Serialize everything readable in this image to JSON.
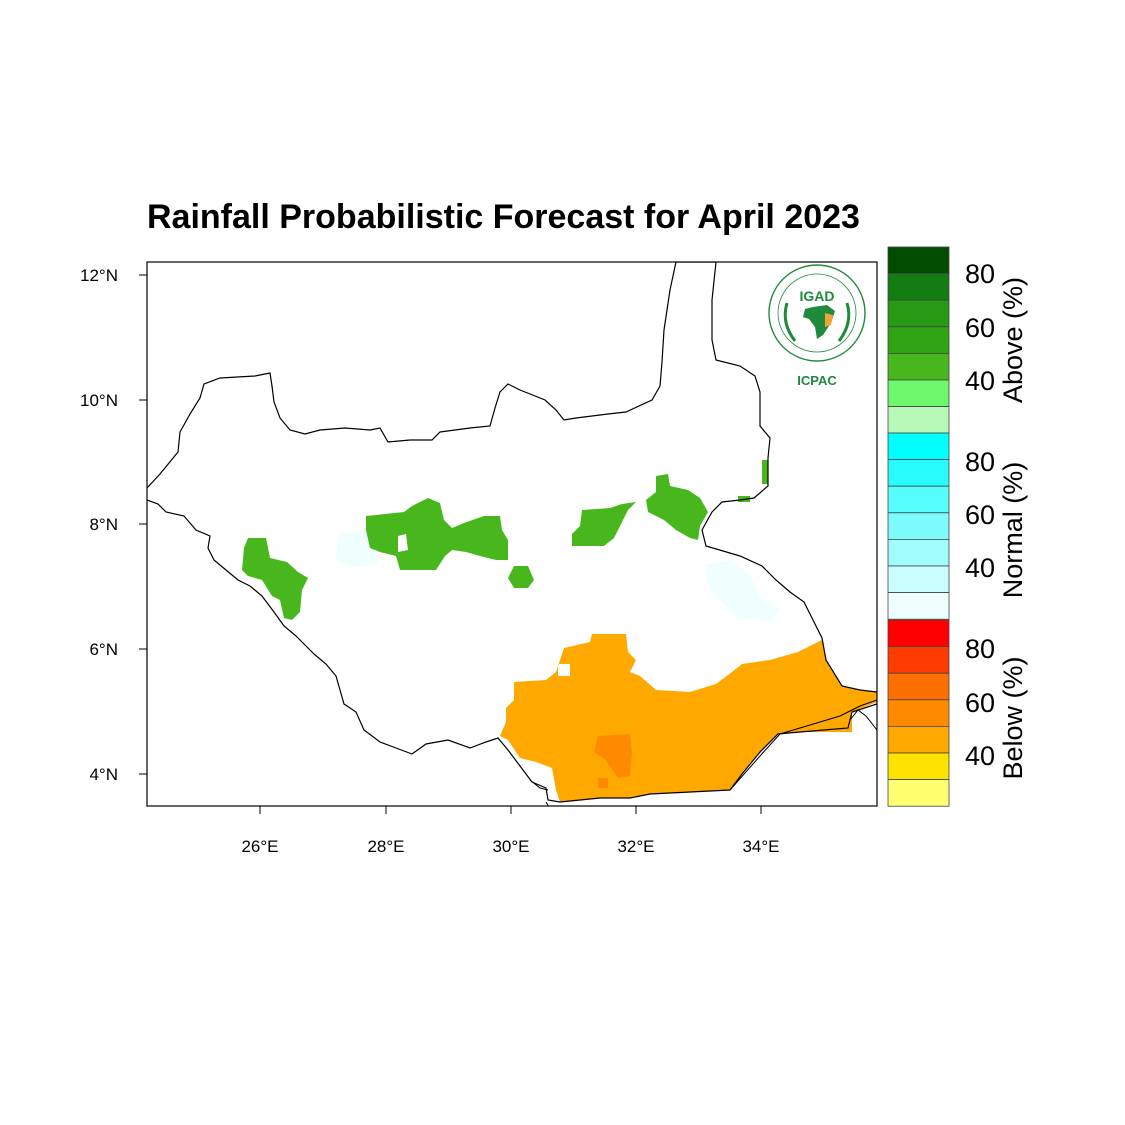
{
  "title": "Rainfall Probabilistic Forecast for April 2023",
  "logo": {
    "top_text": "IGAD",
    "bottom_text": "ICPAC",
    "color": "#1f8a3c",
    "accent": "#f2a33a"
  },
  "axes": {
    "x_ticks": [
      "26°E",
      "28°E",
      "30°E",
      "32°E",
      "34°E"
    ],
    "y_ticks": [
      "12°N",
      "10°N",
      "8°N",
      "6°N",
      "4°N"
    ]
  },
  "colorbar": {
    "above": {
      "title": "Above (%)",
      "labels": [
        "80",
        "60",
        "40"
      ],
      "colors": [
        "#004d00",
        "#137d13",
        "#259a12",
        "#2fa515",
        "#48b71e",
        "#6cf76c",
        "#b7f9b7"
      ]
    },
    "normal": {
      "title": "Normal (%)",
      "labels": [
        "80",
        "60",
        "40"
      ],
      "colors": [
        "#00ffff",
        "#27fbfb",
        "#55fdfd",
        "#7cfcfc",
        "#a1fdfd",
        "#cbfefe",
        "#eefffd"
      ]
    },
    "below": {
      "title": "Below (%)",
      "labels": [
        "80",
        "60",
        "40"
      ],
      "colors": [
        "#ff0000",
        "#ff3c00",
        "#ff6f00",
        "#ff8a00",
        "#ffa800",
        "#ffe300",
        "#ffff70"
      ]
    }
  },
  "map_colors": {
    "above_40": "#48b71e",
    "below_40": "#ffa800",
    "below_50": "#ff8a00",
    "normal_light": "#eefffd"
  }
}
